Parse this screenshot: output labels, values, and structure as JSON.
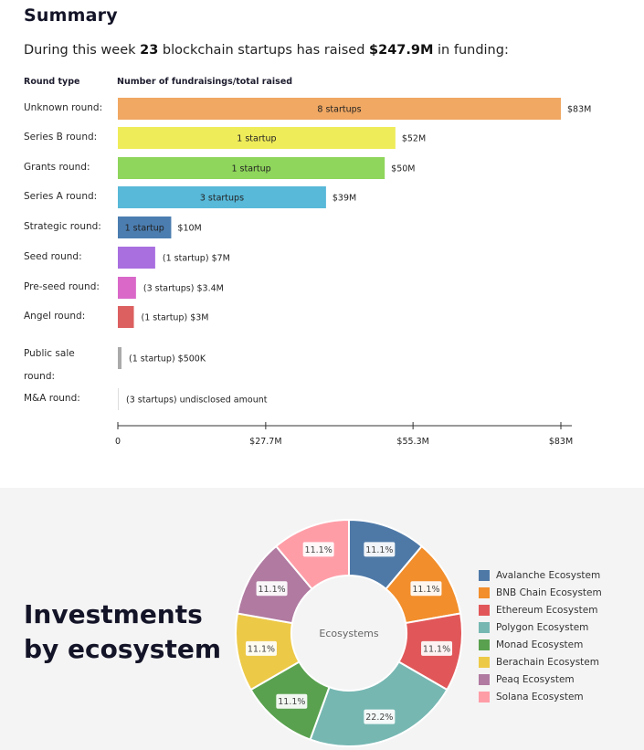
{
  "summary": {
    "title": "Summary",
    "intro_prefix": "During this week ",
    "startup_count": "23",
    "intro_middle": " blockchain startups has raised ",
    "total_raised": "$247.9M",
    "intro_suffix": " in funding:"
  },
  "ecosystem_section": {
    "title_line1": "Investments",
    "title_line2": "by ecosystem"
  },
  "chart_data": [
    {
      "type": "bar",
      "orientation": "horizontal",
      "column_headers": [
        "Round type",
        "Number of fundraisings/total raised"
      ],
      "categories": [
        "Unknown round:",
        "Series B round:",
        "Grants round:",
        "Series A round:",
        "Strategic round:",
        "Seed round:",
        "Pre-seed round:",
        "Angel round:",
        "Public sale round:",
        "M&A round:"
      ],
      "values": [
        83,
        52,
        50,
        39,
        10,
        7,
        3.4,
        3,
        0.5,
        0
      ],
      "startup_labels": [
        "8 startups",
        "1 startup",
        "1 startup",
        "3 startups",
        "1 startup",
        "(1 startup)",
        "(3 startups)",
        "(1 startup)",
        "(1 startup)",
        "(3 startups)"
      ],
      "amount_labels": [
        "$83M",
        "$52M",
        "$50M",
        "$39M",
        "$10M",
        "$7M",
        "$3.4M",
        "$3M",
        "$500K",
        "undisclosed amount"
      ],
      "colors": [
        "#f0a863",
        "#efec5a",
        "#8fd65c",
        "#58b9d9",
        "#4b7db0",
        "#a96fdf",
        "#d968c9",
        "#dc6060",
        "#aaaaaa",
        "#dddddd"
      ],
      "xlim": [
        0,
        83
      ],
      "x_ticks": [
        0,
        27.7,
        55.3,
        83
      ],
      "x_tick_labels": [
        "0",
        "$27.7M",
        "$55.3M",
        "$83M"
      ],
      "grid": false
    },
    {
      "type": "pie",
      "donut": true,
      "center_label": "Ecosystems",
      "labels": [
        "Avalanche Ecosystem",
        "BNB Chain Ecosystem",
        "Ethereum Ecosystem",
        "Polygon Ecosystem",
        "Monad Ecosystem",
        "Berachain Ecosystem",
        "Peaq Ecosystem",
        "Solana Ecosystem"
      ],
      "values": [
        11.1,
        11.1,
        11.1,
        22.2,
        11.1,
        11.1,
        11.1,
        11.1
      ],
      "value_labels": [
        "11.1%",
        "11.1%",
        "11.1%",
        "22.2%",
        "11.1%",
        "11.1%",
        "11.1%",
        "11.1%"
      ],
      "colors": [
        "#4e79a7",
        "#f28e2b",
        "#e15759",
        "#76b7b2",
        "#59a14f",
        "#edc948",
        "#b07aa1",
        "#ff9da7"
      ],
      "legend_position": "right"
    }
  ]
}
